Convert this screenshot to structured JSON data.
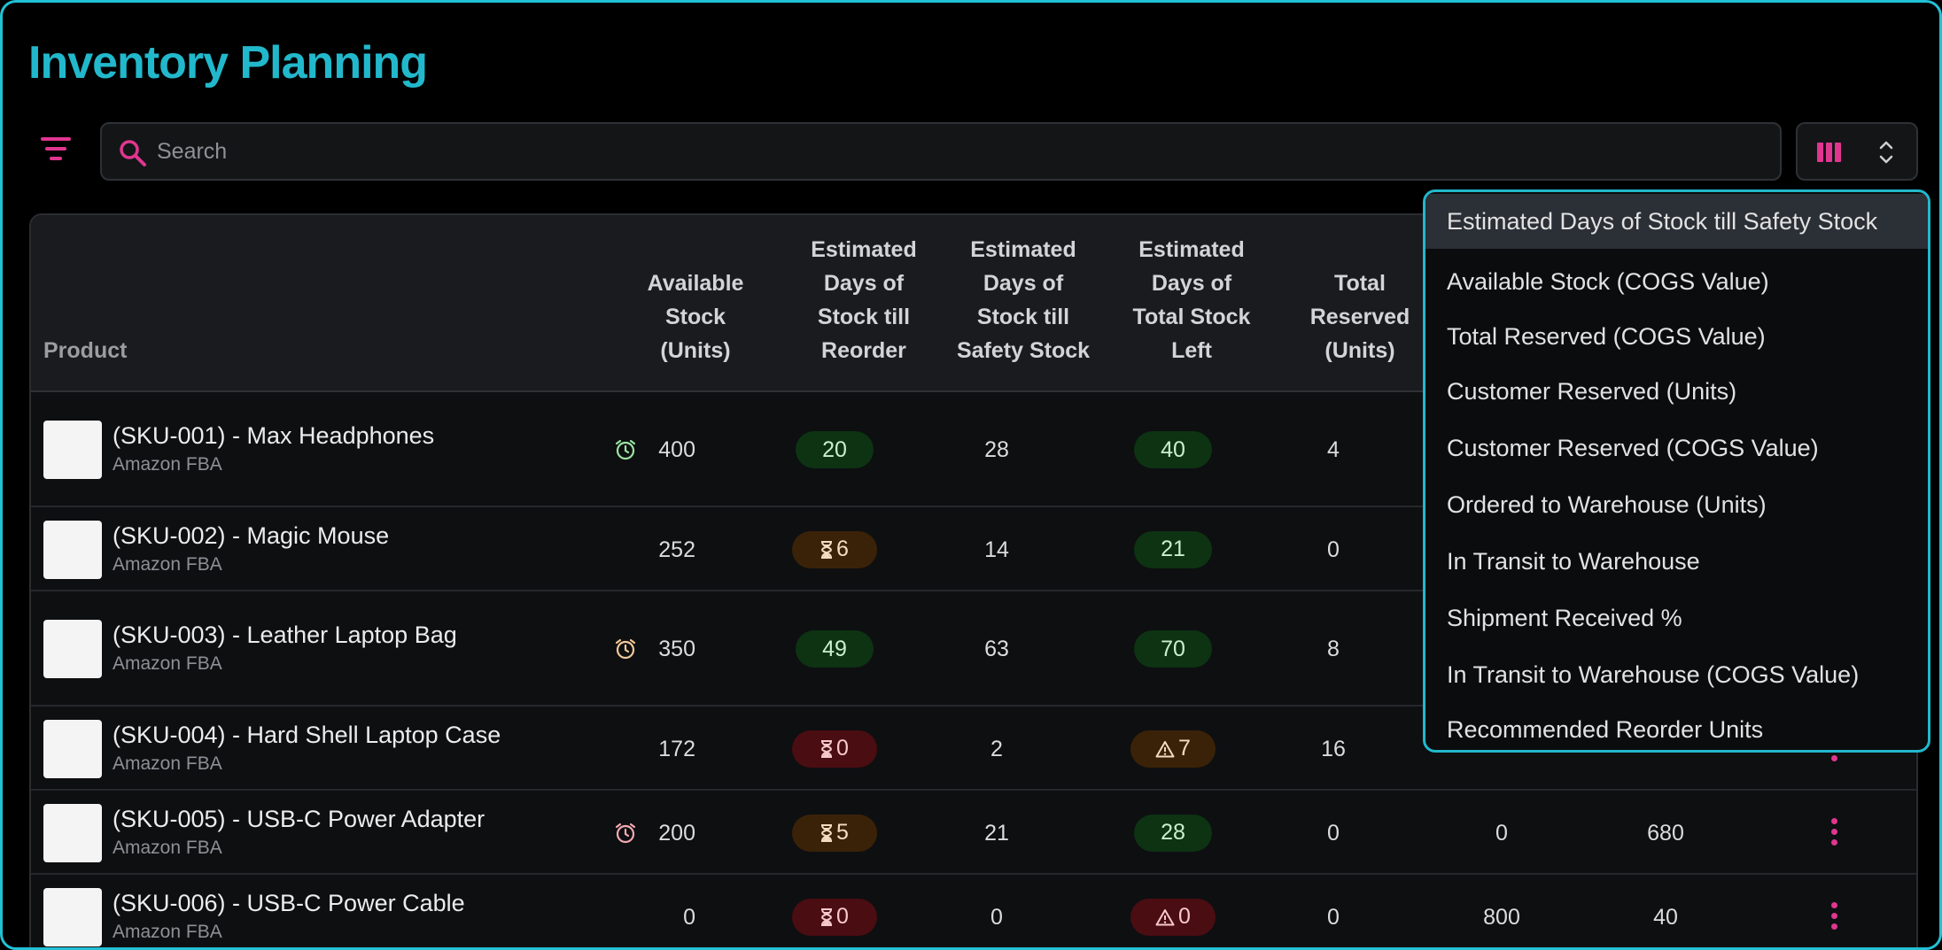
{
  "header": {
    "title": "Inventory Planning"
  },
  "toolbar": {
    "search_placeholder": "Search"
  },
  "table": {
    "columns": {
      "product": "Product",
      "available_stock": [
        "Available",
        "Stock",
        "(Units)"
      ],
      "days_reorder": [
        "Estimated",
        "Days of",
        "Stock till",
        "Reorder"
      ],
      "days_safety": [
        "Estimated",
        "Days of",
        "Stock till",
        "Safety Stock"
      ],
      "days_total": [
        "Estimated",
        "Days of",
        "Total Stock",
        "Left"
      ],
      "total_reserved": [
        "Total",
        "Reserved",
        "(Units)"
      ]
    },
    "rows": [
      {
        "name": "(SKU-001) - Max Headphones",
        "channel": "Amazon FBA",
        "available": "400",
        "reorder": "20",
        "reorder_style": "green",
        "safety": "28",
        "total": "40",
        "total_style": "green",
        "reserved": "4",
        "c7": "",
        "c8": "",
        "alarm": "green"
      },
      {
        "name": "(SKU-002) - Magic Mouse",
        "channel": "Amazon FBA",
        "available": "252",
        "reorder": "6",
        "reorder_style": "amber",
        "safety": "14",
        "total": "21",
        "total_style": "green",
        "reserved": "0",
        "c7": "",
        "c8": "",
        "alarm": ""
      },
      {
        "name": "(SKU-003) - Leather Laptop Bag",
        "channel": "Amazon FBA",
        "available": "350",
        "reorder": "49",
        "reorder_style": "green",
        "safety": "63",
        "total": "70",
        "total_style": "green",
        "reserved": "8",
        "c7": "",
        "c8": "",
        "alarm": "amber"
      },
      {
        "name": "(SKU-004) - Hard Shell Laptop Case",
        "channel": "Amazon FBA",
        "available": "172",
        "reorder": "0",
        "reorder_style": "red",
        "safety": "2",
        "total": "7",
        "total_style": "amber",
        "reserved": "16",
        "c7": "",
        "c8": "",
        "alarm": ""
      },
      {
        "name": "(SKU-005) - USB-C Power Adapter",
        "channel": "Amazon FBA",
        "available": "200",
        "reorder": "5",
        "reorder_style": "amber",
        "safety": "21",
        "total": "28",
        "total_style": "green",
        "reserved": "0",
        "c7": "0",
        "c8": "680",
        "alarm": "red"
      },
      {
        "name": "(SKU-006) - USB-C Power Cable",
        "channel": "Amazon FBA",
        "available": "0",
        "reorder": "0",
        "reorder_style": "red",
        "safety": "0",
        "total": "0",
        "total_style": "red",
        "reserved": "0",
        "c7": "800",
        "c8": "40",
        "alarm": ""
      }
    ]
  },
  "column_menu": {
    "items": [
      "Estimated Days of Stock till Safety Stock",
      "Available Stock (COGS Value)",
      "Total Reserved (COGS Value)",
      "Customer Reserved (Units)",
      "Customer Reserved (COGS Value)",
      "Ordered to Warehouse (Units)",
      "In Transit to Warehouse",
      "Shipment Received %",
      "In Transit to Warehouse (COGS Value)",
      "Recommended Reorder Units"
    ],
    "active_index": 0
  },
  "icons": {
    "filter": "filter-lines-icon",
    "search": "search-icon",
    "columns": "columns-icon",
    "sort": "chevron-up-down-icon",
    "alarm": "alarm-clock-icon",
    "hourglass": "hourglass-icon",
    "warning": "warning-triangle-icon",
    "more": "kebab-menu-icon"
  },
  "colors": {
    "accent": "#e0368f",
    "title": "#22b8cc",
    "green_pill": "#0d3313",
    "amber_pill": "#3a2208",
    "red_pill": "#4a0d12"
  }
}
